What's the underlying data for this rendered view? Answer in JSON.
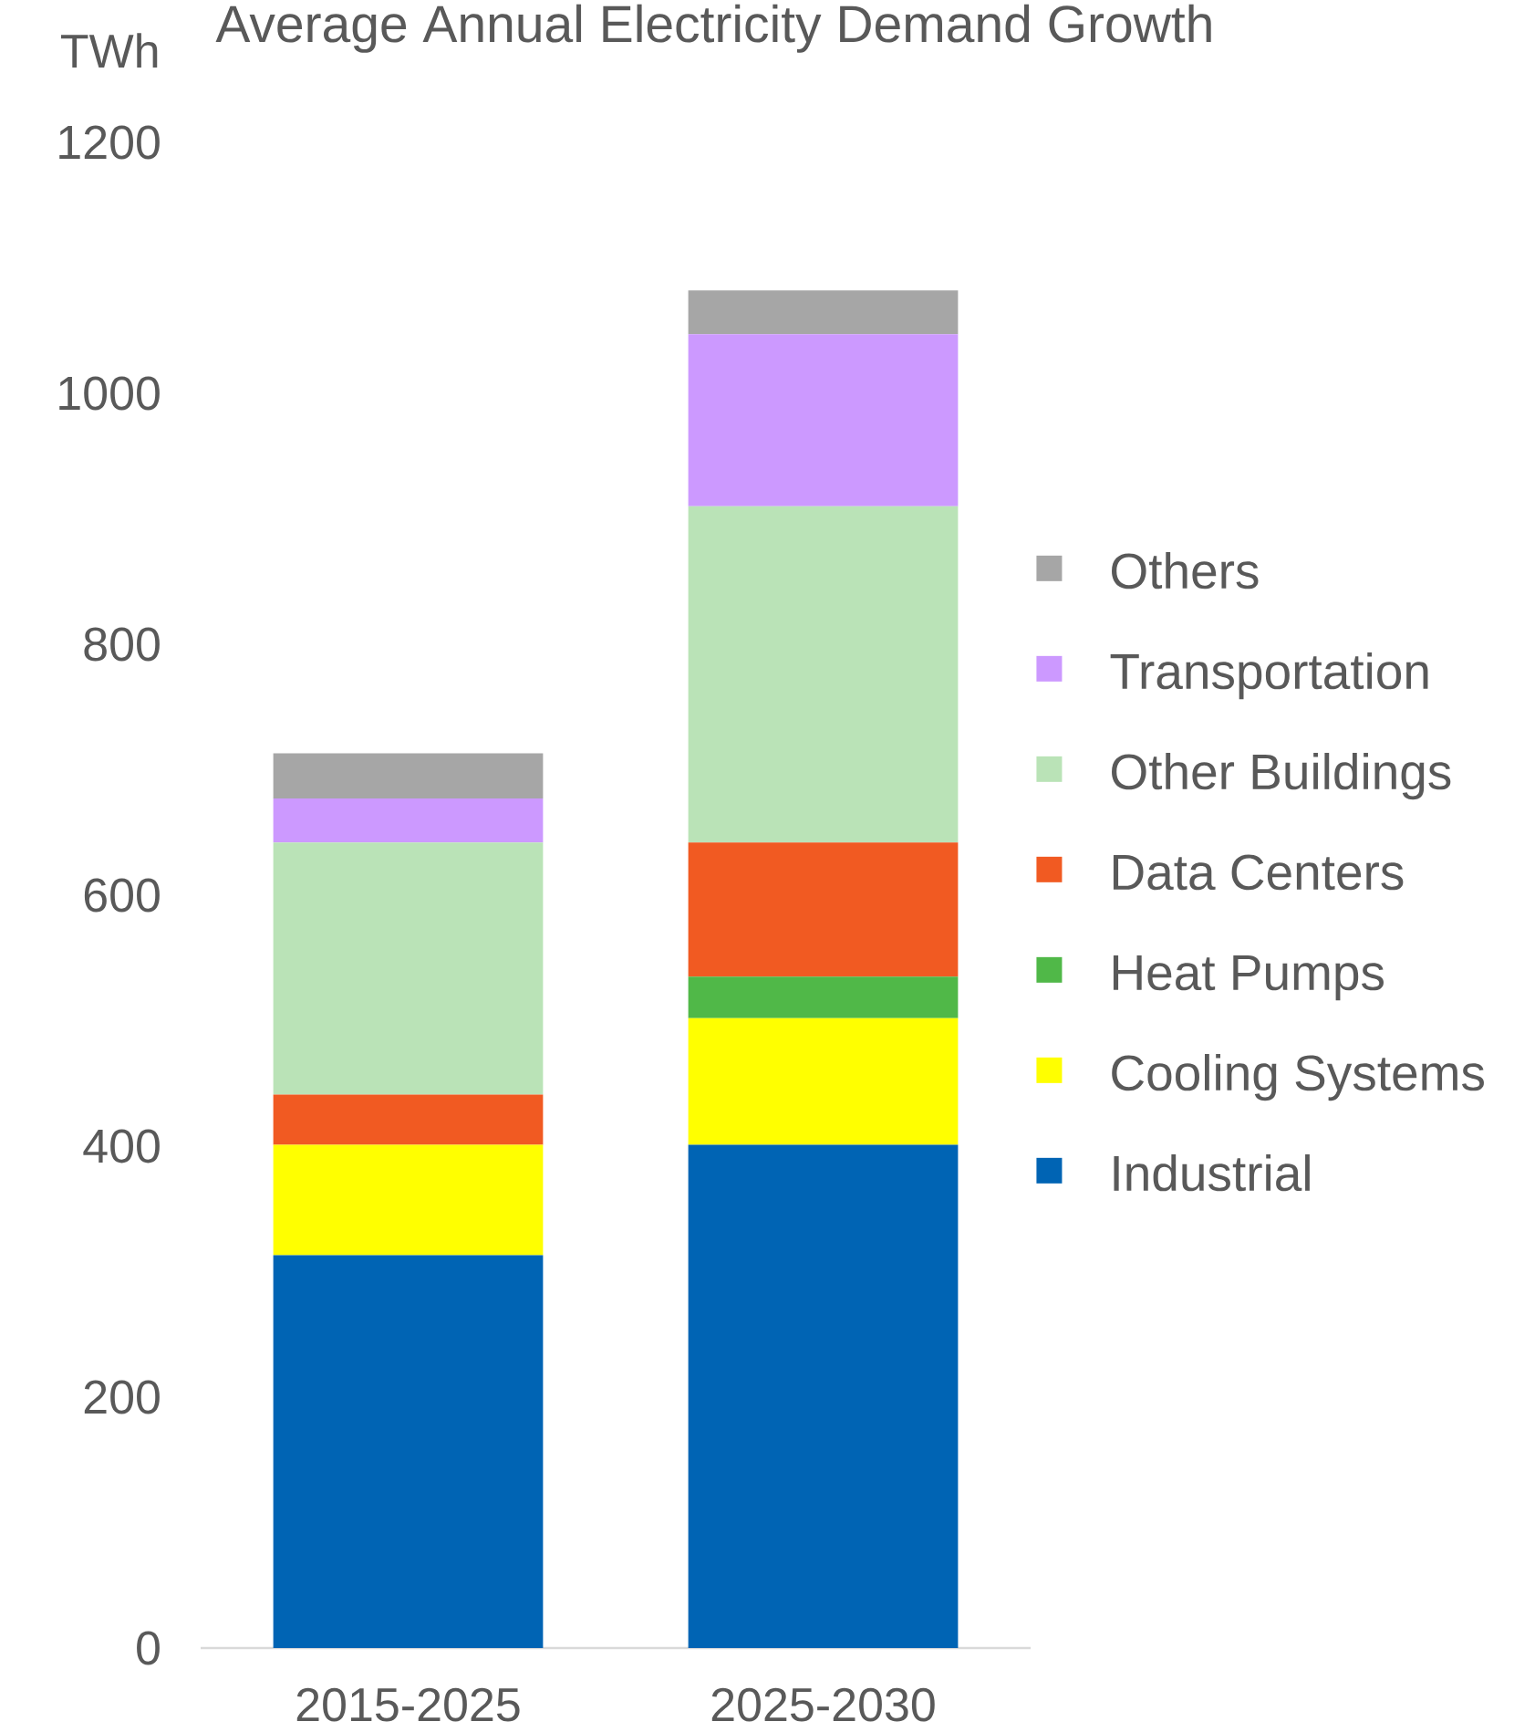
{
  "chart_data": {
    "type": "bar",
    "title": "Average Annual Electricity Demand Growth",
    "ylabel": "TWh",
    "categories": [
      "2015-2025",
      "2025-2030"
    ],
    "series": [
      {
        "name": "Industrial",
        "color": "#0064b4",
        "values": [
          313,
          401
        ]
      },
      {
        "name": "Cooling Systems",
        "color": "#ffff00",
        "values": [
          88,
          101
        ]
      },
      {
        "name": "Heat Pumps",
        "color": "#50b848",
        "values": [
          0,
          33
        ]
      },
      {
        "name": "Data Centers",
        "color": "#f15a22",
        "values": [
          40,
          107
        ]
      },
      {
        "name": "Other Buildings",
        "color": "#bae3b7",
        "values": [
          201,
          268
        ]
      },
      {
        "name": "Transportation",
        "color": "#cc99ff",
        "values": [
          35,
          137
        ]
      },
      {
        "name": "Others",
        "color": "#a6a6a6",
        "values": [
          36,
          35
        ]
      }
    ],
    "stacked": true,
    "ylim": [
      0,
      1200
    ],
    "yticks": [
      0,
      200,
      400,
      600,
      800,
      1000,
      1200
    ],
    "legend": "right"
  }
}
